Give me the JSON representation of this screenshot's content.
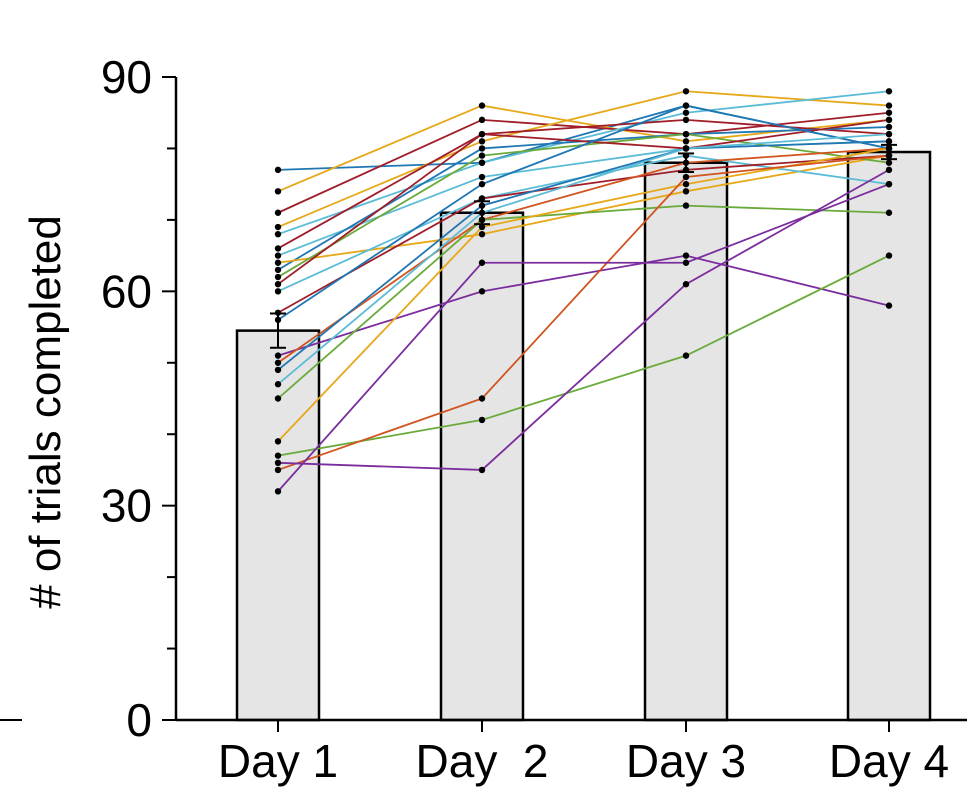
{
  "chart_data": {
    "type": "bar",
    "title": "",
    "xlabel": "",
    "ylabel": "# of trials completed",
    "ylim": [
      0,
      90
    ],
    "yticks": [
      0,
      30,
      60,
      90
    ],
    "yminor_step": 10,
    "grid": false,
    "categories": [
      "Day 1",
      "Day  2",
      "Day 3",
      "Day 4"
    ],
    "values": [
      54.5,
      71,
      78,
      79.5
    ],
    "errors": [
      2.4,
      1.6,
      1.3,
      1.0
    ],
    "bar_color": "#e5e5e5",
    "series": [
      {
        "color": "#1f77b4",
        "values": [
          77,
          78,
          86,
          80
        ]
      },
      {
        "color": "#e6a817",
        "values": [
          74,
          86,
          81,
          84
        ]
      },
      {
        "color": "#a01d2a",
        "values": [
          71,
          84,
          82,
          85
        ]
      },
      {
        "color": "#e6a817",
        "values": [
          69,
          81,
          88,
          86
        ]
      },
      {
        "color": "#5bbcd6",
        "values": [
          68,
          78,
          85,
          88
        ]
      },
      {
        "color": "#a01d2a",
        "values": [
          66,
          82,
          84,
          82
        ]
      },
      {
        "color": "#5bbcd6",
        "values": [
          65,
          76,
          80,
          81
        ]
      },
      {
        "color": "#1f77b4",
        "values": [
          63,
          80,
          82,
          83
        ]
      },
      {
        "color": "#e6a817",
        "values": [
          64,
          68,
          74,
          79
        ]
      },
      {
        "color": "#6aaa3a",
        "values": [
          62,
          79,
          82,
          78
        ]
      },
      {
        "color": "#a01d2a",
        "values": [
          61,
          82,
          80,
          84
        ]
      },
      {
        "color": "#5bbcd6",
        "values": [
          60,
          73,
          79,
          75
        ]
      },
      {
        "color": "#a01d2a",
        "values": [
          57,
          73,
          77,
          79
        ]
      },
      {
        "color": "#1f77b4",
        "values": [
          56,
          75,
          86,
          80
        ]
      },
      {
        "color": "#7b2d9e",
        "values": [
          51,
          60,
          65,
          58
        ]
      },
      {
        "color": "#d2541f",
        "values": [
          50,
          70,
          78,
          80
        ]
      },
      {
        "color": "#1f77b4",
        "values": [
          49,
          72,
          80,
          81
        ]
      },
      {
        "color": "#5bbcd6",
        "values": [
          47,
          71,
          80,
          82
        ]
      },
      {
        "color": "#6aaa3a",
        "values": [
          45,
          70,
          72,
          71
        ]
      },
      {
        "color": "#e6a817",
        "values": [
          39,
          69,
          75,
          80
        ]
      },
      {
        "color": "#6aaa3a",
        "values": [
          37,
          42,
          51,
          65
        ]
      },
      {
        "color": "#d2541f",
        "values": [
          35,
          45,
          76,
          79
        ]
      },
      {
        "color": "#7b2d9e",
        "values": [
          36,
          35,
          61,
          77
        ]
      },
      {
        "color": "#7b2d9e",
        "values": [
          32,
          64,
          64,
          75
        ]
      }
    ]
  }
}
